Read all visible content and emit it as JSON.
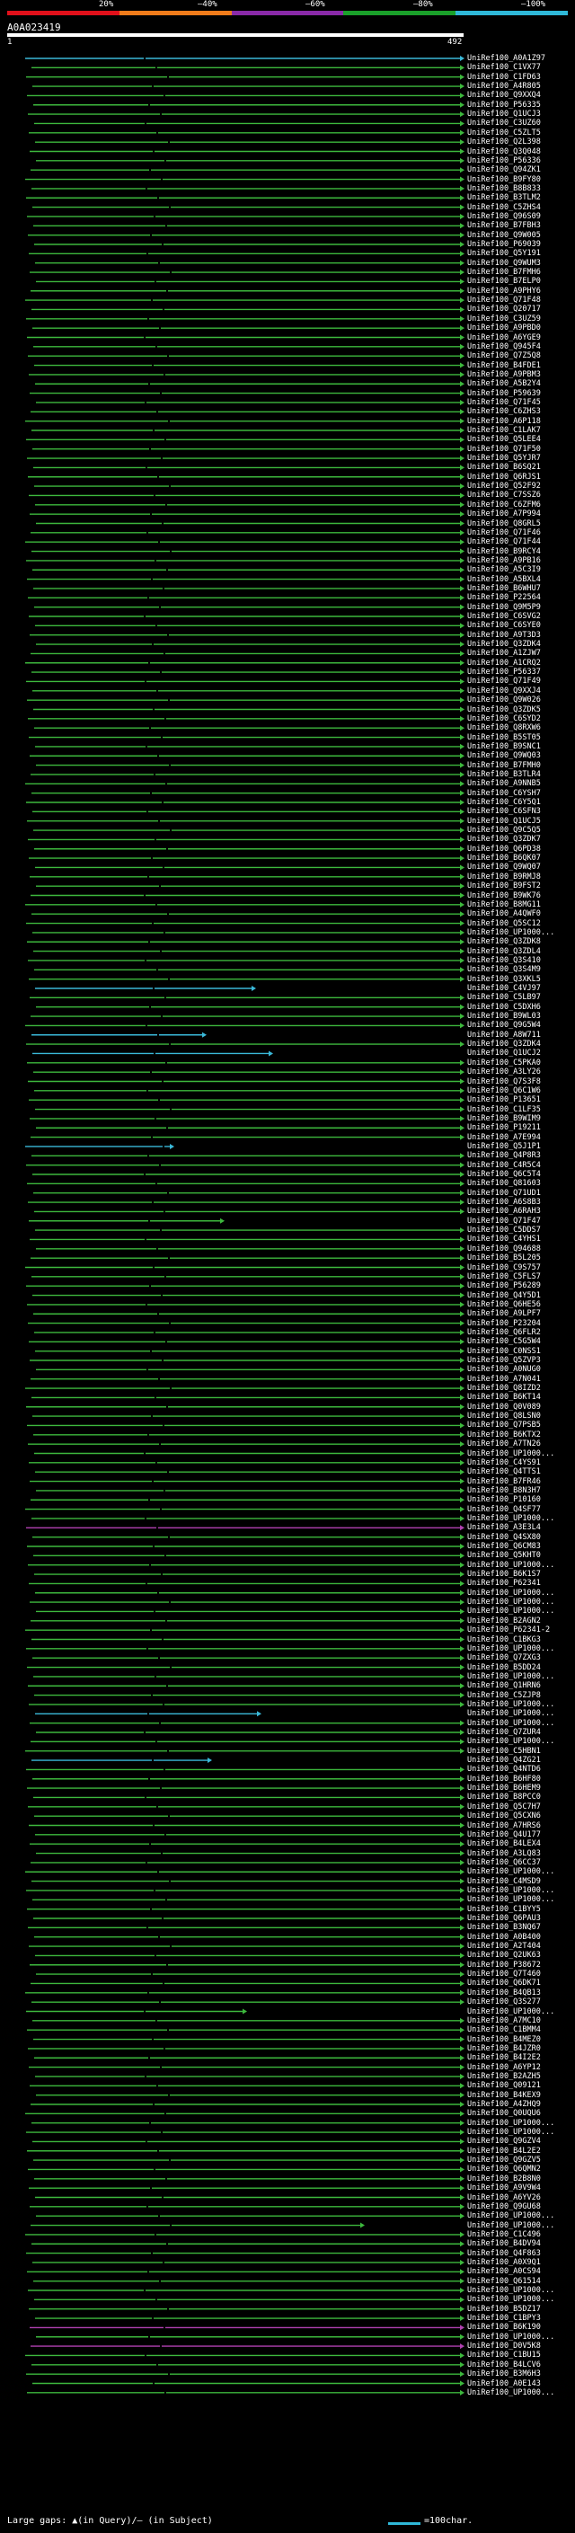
{
  "scale": {
    "labels": [
      "20%",
      "–40%",
      "–60%",
      "–80%",
      "–100%"
    ],
    "colors": [
      "#e0101a",
      "#f07b1a",
      "#8a2aa8",
      "#1aa02a",
      "#2fb8d8"
    ]
  },
  "query": {
    "id": "A0A023419",
    "start": "1",
    "end": "492"
  },
  "colors": {
    "green": "#3db83d",
    "cyan": "#3ab8d8",
    "magenta": "#b040b0",
    "black": "#000000"
  },
  "hits": [
    {
      "label": "UniRef100_A0A1Z97",
      "color": "cyan"
    },
    {
      "label": "UniRef100_C1VX77",
      "color": "green"
    },
    {
      "label": "UniRef100_C1FD63",
      "color": "green"
    },
    {
      "label": "UniRef100_A4R805",
      "color": "green"
    },
    {
      "label": "UniRef100_Q9XXQ4",
      "color": "green"
    },
    {
      "label": "UniRef100_P56335",
      "color": "green"
    },
    {
      "label": "UniRef100_Q1UCJ3",
      "color": "green"
    },
    {
      "label": "UniRef100_C3UZ60",
      "color": "green"
    },
    {
      "label": "UniRef100_C5ZLT5",
      "color": "green"
    },
    {
      "label": "UniRef100_Q2L398",
      "color": "green"
    },
    {
      "label": "UniRef100_Q3Q048",
      "color": "green"
    },
    {
      "label": "UniRef100_P56336",
      "color": "green"
    },
    {
      "label": "UniRef100_Q94ZK1",
      "color": "green"
    },
    {
      "label": "UniRef100_B9FY80",
      "color": "green"
    },
    {
      "label": "UniRef100_B8B833",
      "color": "green"
    },
    {
      "label": "UniRef100_B3TLM2",
      "color": "green"
    },
    {
      "label": "UniRef100_C5ZHS4",
      "color": "green"
    },
    {
      "label": "UniRef100_Q96S09",
      "color": "green"
    },
    {
      "label": "UniRef100_B7FBH3",
      "color": "green"
    },
    {
      "label": "UniRef100_Q9W005",
      "color": "green"
    },
    {
      "label": "UniRef100_P69039",
      "color": "green"
    },
    {
      "label": "UniRef100_Q5Y191",
      "color": "green"
    },
    {
      "label": "UniRef100_Q9WUM3",
      "color": "green"
    },
    {
      "label": "UniRef100_B7FMH6",
      "color": "green"
    },
    {
      "label": "UniRef100_B7ELP0",
      "color": "green"
    },
    {
      "label": "UniRef100_A9PHY6",
      "color": "green"
    },
    {
      "label": "UniRef100_Q71F48",
      "color": "green"
    },
    {
      "label": "UniRef100_Q20717",
      "color": "green"
    },
    {
      "label": "UniRef100_C3UZ59",
      "color": "green"
    },
    {
      "label": "UniRef100_A9PBD0",
      "color": "green"
    },
    {
      "label": "UniRef100_A6YGE9",
      "color": "green"
    },
    {
      "label": "UniRef100_Q945F4",
      "color": "green"
    },
    {
      "label": "UniRef100_Q7Z5Q8",
      "color": "green"
    },
    {
      "label": "UniRef100_B4FDE1",
      "color": "green"
    },
    {
      "label": "UniRef100_A9PBM3",
      "color": "green"
    },
    {
      "label": "UniRef100_A5B2Y4",
      "color": "green"
    },
    {
      "label": "UniRef100_P59639",
      "color": "green"
    },
    {
      "label": "UniRef100_Q71F45",
      "color": "green"
    },
    {
      "label": "UniRef100_C6ZHS3",
      "color": "green"
    },
    {
      "label": "UniRef100_A6P118",
      "color": "green"
    },
    {
      "label": "UniRef100_C1LAK7",
      "color": "green"
    },
    {
      "label": "UniRef100_Q5LEE4",
      "color": "green"
    },
    {
      "label": "UniRef100_Q71F50",
      "color": "green"
    },
    {
      "label": "UniRef100_Q5YJR7",
      "color": "green"
    },
    {
      "label": "UniRef100_B6SQ21",
      "color": "green"
    },
    {
      "label": "UniRef100_Q6RJS1",
      "color": "green"
    },
    {
      "label": "UniRef100_Q52F92",
      "color": "green"
    },
    {
      "label": "UniRef100_C7SSZ6",
      "color": "green"
    },
    {
      "label": "UniRef100_C6ZFM6",
      "color": "green"
    },
    {
      "label": "UniRef100_A7P994",
      "color": "green"
    },
    {
      "label": "UniRef100_Q8GRL5",
      "color": "green"
    },
    {
      "label": "UniRef100_Q71F46",
      "color": "green"
    },
    {
      "label": "UniRef100_Q71F44",
      "color": "green"
    },
    {
      "label": "UniRef100_B9RCY4",
      "color": "green"
    },
    {
      "label": "UniRef100_A9PB16",
      "color": "green"
    },
    {
      "label": "UniRef100_A5C3I9",
      "color": "green"
    },
    {
      "label": "UniRef100_A5BXL4",
      "color": "green"
    },
    {
      "label": "UniRef100_B6WHU7",
      "color": "green"
    },
    {
      "label": "UniRef100_P22564",
      "color": "green"
    },
    {
      "label": "UniRef100_Q9M5P9",
      "color": "green"
    },
    {
      "label": "UniRef100_C6SVG2",
      "color": "green"
    },
    {
      "label": "UniRef100_C6SYE0",
      "color": "green"
    },
    {
      "label": "UniRef100_A9T3D3",
      "color": "green"
    },
    {
      "label": "UniRef100_Q3ZDK4",
      "color": "green"
    },
    {
      "label": "UniRef100_A1ZJW7",
      "color": "green"
    },
    {
      "label": "UniRef100_A1CRQ2",
      "color": "green"
    },
    {
      "label": "UniRef100_P56337",
      "color": "green"
    },
    {
      "label": "UniRef100_Q71F49",
      "color": "green"
    },
    {
      "label": "UniRef100_Q9XXJ4",
      "color": "green"
    },
    {
      "label": "UniRef100_Q9W026",
      "color": "green"
    },
    {
      "label": "UniRef100_Q3ZDK5",
      "color": "green"
    },
    {
      "label": "UniRef100_C6SYD2",
      "color": "green"
    },
    {
      "label": "UniRef100_Q8RXW6",
      "color": "green"
    },
    {
      "label": "UniRef100_B5ST05",
      "color": "green"
    },
    {
      "label": "UniRef100_B9SNC1",
      "color": "green"
    },
    {
      "label": "UniRef100_Q9WQ03",
      "color": "green"
    },
    {
      "label": "UniRef100_B7FMH0",
      "color": "green"
    },
    {
      "label": "UniRef100_B3TLR4",
      "color": "green"
    },
    {
      "label": "UniRef100_A9NNB5",
      "color": "green"
    },
    {
      "label": "UniRef100_C6YSH7",
      "color": "green"
    },
    {
      "label": "UniRef100_C6Y5Q1",
      "color": "green"
    },
    {
      "label": "UniRef100_C6SFN3",
      "color": "green"
    },
    {
      "label": "UniRef100_Q1UCJ5",
      "color": "green"
    },
    {
      "label": "UniRef100_Q9C5Q5",
      "color": "green"
    },
    {
      "label": "UniRef100_Q3ZDK7",
      "color": "green"
    },
    {
      "label": "UniRef100_Q6PD38",
      "color": "green"
    },
    {
      "label": "UniRef100_B6QK07",
      "color": "green"
    },
    {
      "label": "UniRef100_Q9WQ07",
      "color": "green"
    },
    {
      "label": "UniRef100_B9RMJ8",
      "color": "green"
    },
    {
      "label": "UniRef100_B9FST2",
      "color": "green"
    },
    {
      "label": "UniRef100_B9WK76",
      "color": "green"
    },
    {
      "label": "UniRef100_B8MG11",
      "color": "green"
    },
    {
      "label": "UniRef100_A4QWF0",
      "color": "green"
    },
    {
      "label": "UniRef100_Q5SC12",
      "color": "green"
    },
    {
      "label": "UniRef100_UP1000...",
      "color": "green"
    },
    {
      "label": "UniRef100_Q3ZDK8",
      "color": "green"
    },
    {
      "label": "UniRef100_Q3ZDL4",
      "color": "green"
    },
    {
      "label": "UniRef100_Q3S410",
      "color": "green"
    },
    {
      "label": "UniRef100_Q3S4M9",
      "color": "green"
    },
    {
      "label": "UniRef100_Q3XKL5",
      "color": "green"
    },
    {
      "label": "UniRef100_C4VJ97",
      "color": "cyan",
      "short": true
    },
    {
      "label": "UniRef100_C5LB97",
      "color": "green"
    },
    {
      "label": "UniRef100_C5DXH6",
      "color": "green"
    },
    {
      "label": "UniRef100_B9WL03",
      "color": "green"
    },
    {
      "label": "UniRef100_Q9G5W4",
      "color": "green"
    },
    {
      "label": "UniRef100_A8W711",
      "color": "cyan",
      "short": true
    },
    {
      "label": "UniRef100_Q3ZDK4",
      "color": "green"
    },
    {
      "label": "UniRef100_Q1UCJ2",
      "color": "cyan",
      "short": true
    },
    {
      "label": "UniRef100_C5PKA0",
      "color": "green"
    },
    {
      "label": "UniRef100_A3LY26",
      "color": "green"
    },
    {
      "label": "UniRef100_Q7S3F8",
      "color": "green"
    },
    {
      "label": "UniRef100_Q6C1W6",
      "color": "green"
    },
    {
      "label": "UniRef100_P13651",
      "color": "green"
    },
    {
      "label": "UniRef100_C1LF35",
      "color": "green"
    },
    {
      "label": "UniRef100_B9WIM9",
      "color": "green"
    },
    {
      "label": "UniRef100_P19211",
      "color": "green"
    },
    {
      "label": "UniRef100_A7E994",
      "color": "green"
    },
    {
      "label": "UniRef100_Q5J1P1",
      "color": "cyan",
      "short": true
    },
    {
      "label": "UniRef100_Q4P8R3",
      "color": "green"
    },
    {
      "label": "UniRef100_C4R5C4",
      "color": "green"
    },
    {
      "label": "UniRef100_Q6C5T4",
      "color": "green"
    },
    {
      "label": "UniRef100_Q81603",
      "color": "green"
    },
    {
      "label": "UniRef100_Q71UD1",
      "color": "green"
    },
    {
      "label": "UniRef100_A6S8B3",
      "color": "green"
    },
    {
      "label": "UniRef100_A6RAH3",
      "color": "green"
    },
    {
      "label": "UniRef100_Q71F47",
      "color": "green",
      "short": true
    },
    {
      "label": "UniRef100_C5DDS7",
      "color": "green"
    },
    {
      "label": "UniRef100_C4YHS1",
      "color": "green"
    },
    {
      "label": "UniRef100_Q94688",
      "color": "green"
    },
    {
      "label": "UniRef100_B5L205",
      "color": "green"
    },
    {
      "label": "UniRef100_C9S757",
      "color": "green"
    },
    {
      "label": "UniRef100_C5FLS7",
      "color": "green"
    },
    {
      "label": "UniRef100_P56289",
      "color": "green"
    },
    {
      "label": "UniRef100_Q4Y5D1",
      "color": "green"
    },
    {
      "label": "UniRef100_Q6HE56",
      "color": "green"
    },
    {
      "label": "UniRef100_A9LPF7",
      "color": "green"
    },
    {
      "label": "UniRef100_P23204",
      "color": "green"
    },
    {
      "label": "UniRef100_Q6FLR2",
      "color": "green"
    },
    {
      "label": "UniRef100_C5G5W4",
      "color": "green"
    },
    {
      "label": "UniRef100_C0NSS1",
      "color": "green"
    },
    {
      "label": "UniRef100_Q5ZVP3",
      "color": "green"
    },
    {
      "label": "UniRef100_A0NUG0",
      "color": "green"
    },
    {
      "label": "UniRef100_A7N041",
      "color": "green"
    },
    {
      "label": "UniRef100_Q8IZD2",
      "color": "green"
    },
    {
      "label": "UniRef100_B6KT14",
      "color": "green"
    },
    {
      "label": "UniRef100_Q0V089",
      "color": "green"
    },
    {
      "label": "UniRef100_Q8LSN0",
      "color": "green"
    },
    {
      "label": "UniRef100_Q7PSB5",
      "color": "green"
    },
    {
      "label": "UniRef100_B6KTX2",
      "color": "green"
    },
    {
      "label": "UniRef100_A7TN26",
      "color": "green"
    },
    {
      "label": "UniRef100_UP1000...",
      "color": "green"
    },
    {
      "label": "UniRef100_C4YS91",
      "color": "green"
    },
    {
      "label": "UniRef100_Q4TTS1",
      "color": "green"
    },
    {
      "label": "UniRef100_B7FR46",
      "color": "green"
    },
    {
      "label": "UniRef100_B8N3H7",
      "color": "green"
    },
    {
      "label": "UniRef100_P10160",
      "color": "green"
    },
    {
      "label": "UniRef100_Q4SF77",
      "color": "green"
    },
    {
      "label": "UniRef100_UP1000...",
      "color": "green"
    },
    {
      "label": "UniRef100_A3E3L4",
      "color": "magenta"
    },
    {
      "label": "UniRef100_Q4SX80",
      "color": "green"
    },
    {
      "label": "UniRef100_Q6CM83",
      "color": "green"
    },
    {
      "label": "UniRef100_Q5KHT0",
      "color": "green"
    },
    {
      "label": "UniRef100_UP1000...",
      "color": "green"
    },
    {
      "label": "UniRef100_B6K1S7",
      "color": "green"
    },
    {
      "label": "UniRef100_P62341",
      "color": "green"
    },
    {
      "label": "UniRef100_UP1000...",
      "color": "green"
    },
    {
      "label": "UniRef100_UP1000...",
      "color": "green"
    },
    {
      "label": "UniRef100_UP1000...",
      "color": "green"
    },
    {
      "label": "UniRef100_B2AGN2",
      "color": "green"
    },
    {
      "label": "UniRef100_P62341-2",
      "color": "green"
    },
    {
      "label": "UniRef100_C1BKG3",
      "color": "green"
    },
    {
      "label": "UniRef100_UP1000...",
      "color": "green"
    },
    {
      "label": "UniRef100_Q7ZXG3",
      "color": "green"
    },
    {
      "label": "UniRef100_B5DD24",
      "color": "green"
    },
    {
      "label": "UniRef100_UP1000...",
      "color": "green"
    },
    {
      "label": "UniRef100_Q1HRN6",
      "color": "green"
    },
    {
      "label": "UniRef100_C5ZJP8",
      "color": "green"
    },
    {
      "label": "UniRef100_UP1000...",
      "color": "green"
    },
    {
      "label": "UniRef100_UP1000...",
      "color": "cyan",
      "short": true
    },
    {
      "label": "UniRef100_UP1000...",
      "color": "green"
    },
    {
      "label": "UniRef100_Q7ZUR4",
      "color": "green"
    },
    {
      "label": "UniRef100_UP1000...",
      "color": "green"
    },
    {
      "label": "UniRef100_C5HBN1",
      "color": "green"
    },
    {
      "label": "UniRef100_Q4ZG21",
      "color": "cyan",
      "short": true
    },
    {
      "label": "UniRef100_Q4NTD6",
      "color": "green"
    },
    {
      "label": "UniRef100_B6HF80",
      "color": "green"
    },
    {
      "label": "UniRef100_B6HEM9",
      "color": "green"
    },
    {
      "label": "UniRef100_B8PCC0",
      "color": "green"
    },
    {
      "label": "UniRef100_Q5C7H7",
      "color": "green"
    },
    {
      "label": "UniRef100_Q5CXN6",
      "color": "green"
    },
    {
      "label": "UniRef100_A7HRS6",
      "color": "green"
    },
    {
      "label": "UniRef100_Q4U177",
      "color": "green"
    },
    {
      "label": "UniRef100_B4LEX4",
      "color": "green"
    },
    {
      "label": "UniRef100_A3LQ83",
      "color": "green"
    },
    {
      "label": "UniRef100_Q6CC37",
      "color": "green"
    },
    {
      "label": "UniRef100_UP1000...",
      "color": "green"
    },
    {
      "label": "UniRef100_C4MSD9",
      "color": "green"
    },
    {
      "label": "UniRef100_UP1000...",
      "color": "green"
    },
    {
      "label": "UniRef100_UP1000...",
      "color": "green"
    },
    {
      "label": "UniRef100_C1BYY5",
      "color": "green"
    },
    {
      "label": "UniRef100_Q6PAU3",
      "color": "green"
    },
    {
      "label": "UniRef100_B3NQ67",
      "color": "green"
    },
    {
      "label": "UniRef100_A0B400",
      "color": "green"
    },
    {
      "label": "UniRef100_A2T404",
      "color": "green"
    },
    {
      "label": "UniRef100_Q2UK63",
      "color": "green"
    },
    {
      "label": "UniRef100_P38672",
      "color": "green"
    },
    {
      "label": "UniRef100_Q7T460",
      "color": "green"
    },
    {
      "label": "UniRef100_Q6DK71",
      "color": "green"
    },
    {
      "label": "UniRef100_B4QB13",
      "color": "green"
    },
    {
      "label": "UniRef100_Q3S277",
      "color": "green"
    },
    {
      "label": "UniRef100_UP1000...",
      "color": "green",
      "short": true
    },
    {
      "label": "UniRef100_A7MC10",
      "color": "green"
    },
    {
      "label": "UniRef100_C1BMM4",
      "color": "green"
    },
    {
      "label": "UniRef100_B4MEZ0",
      "color": "green"
    },
    {
      "label": "UniRef100_B4JZR0",
      "color": "green"
    },
    {
      "label": "UniRef100_B4I2E2",
      "color": "green"
    },
    {
      "label": "UniRef100_A6YP12",
      "color": "green"
    },
    {
      "label": "UniRef100_B2AZH5",
      "color": "green"
    },
    {
      "label": "UniRef100_Q09121",
      "color": "green"
    },
    {
      "label": "UniRef100_B4KEX9",
      "color": "green"
    },
    {
      "label": "UniRef100_A4ZHQ9",
      "color": "green"
    },
    {
      "label": "UniRef100_Q0UQU6",
      "color": "green"
    },
    {
      "label": "UniRef100_UP1000...",
      "color": "green"
    },
    {
      "label": "UniRef100_UP1000...",
      "color": "green"
    },
    {
      "label": "UniRef100_Q9GZV4",
      "color": "green"
    },
    {
      "label": "UniRef100_B4L2E2",
      "color": "green"
    },
    {
      "label": "UniRef100_Q9GZV5",
      "color": "green"
    },
    {
      "label": "UniRef100_Q6QMN2",
      "color": "green"
    },
    {
      "label": "UniRef100_B2B8N0",
      "color": "green"
    },
    {
      "label": "UniRef100_A9V9W4",
      "color": "green"
    },
    {
      "label": "UniRef100_A6YV26",
      "color": "green"
    },
    {
      "label": "UniRef100_Q9GU68",
      "color": "green"
    },
    {
      "label": "UniRef100_UP1000...",
      "color": "green"
    },
    {
      "label": "UniRef100_UP1000...",
      "color": "green",
      "short": true
    },
    {
      "label": "UniRef100_C1C496",
      "color": "green"
    },
    {
      "label": "UniRef100_B4DV94",
      "color": "green"
    },
    {
      "label": "UniRef100_Q4F863",
      "color": "green"
    },
    {
      "label": "UniRef100_A0X9Q1",
      "color": "green"
    },
    {
      "label": "UniRef100_A0CS94",
      "color": "green"
    },
    {
      "label": "UniRef100_Q61514",
      "color": "green"
    },
    {
      "label": "UniRef100_UP1000...",
      "color": "green"
    },
    {
      "label": "UniRef100_UP1000...",
      "color": "green"
    },
    {
      "label": "UniRef100_B5DZ17",
      "color": "green"
    },
    {
      "label": "UniRef100_C1BPY3",
      "color": "green"
    },
    {
      "label": "UniRef100_B6K190",
      "color": "magenta"
    },
    {
      "label": "UniRef100_UP1000...",
      "color": "green"
    },
    {
      "label": "UniRef100_D0V5K8",
      "color": "magenta"
    },
    {
      "label": "UniRef100_C1BU15",
      "color": "green"
    },
    {
      "label": "UniRef100_B4LCV6",
      "color": "green"
    },
    {
      "label": "UniRef100_B3M6H3",
      "color": "green"
    },
    {
      "label": "UniRef100_A0E143",
      "color": "green"
    },
    {
      "label": "UniRef100_UP1000...",
      "color": "green"
    }
  ],
  "legend": {
    "left": "Large gaps: ▲(in Query)/– (in Subject)",
    "right": "=100char."
  }
}
